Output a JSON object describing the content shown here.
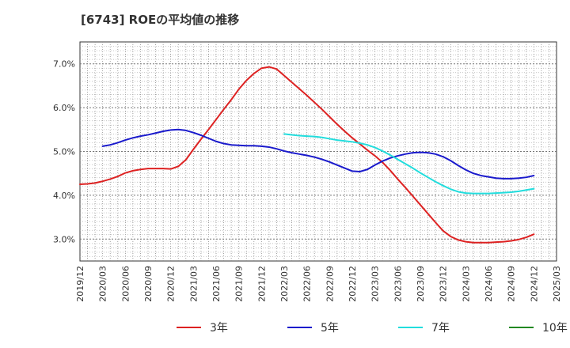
{
  "title": "[6743]  ROEの平均値の推移",
  "chart_data": {
    "type": "line",
    "title": "[6743]  ROEの平均値の推移",
    "xlabel": "",
    "ylabel": "",
    "ylim": [
      2.5,
      7.5
    ],
    "y_ticks": [
      3.0,
      4.0,
      5.0,
      6.0,
      7.0
    ],
    "y_tick_labels": [
      "3.0%",
      "4.0%",
      "5.0%",
      "6.0%",
      "7.0%"
    ],
    "x_ticks": [
      "2019/12",
      "2020/03",
      "2020/06",
      "2020/09",
      "2020/12",
      "2021/03",
      "2021/06",
      "2021/09",
      "2021/12",
      "2022/03",
      "2022/06",
      "2022/09",
      "2022/12",
      "2023/03",
      "2023/06",
      "2023/09",
      "2023/12",
      "2024/03",
      "2024/06",
      "2024/09",
      "2024/12",
      "2025/03"
    ],
    "grid": true,
    "legend_position": "bottom",
    "series": [
      {
        "name": "3年",
        "color": "#dd2222",
        "points": [
          [
            "2019/12",
            4.25
          ],
          [
            "2020/01",
            4.26
          ],
          [
            "2020/02",
            4.28
          ],
          [
            "2020/03",
            4.32
          ],
          [
            "2020/04",
            4.37
          ],
          [
            "2020/05",
            4.43
          ],
          [
            "2020/06",
            4.51
          ],
          [
            "2020/07",
            4.56
          ],
          [
            "2020/08",
            4.59
          ],
          [
            "2020/09",
            4.61
          ],
          [
            "2020/10",
            4.61
          ],
          [
            "2020/11",
            4.61
          ],
          [
            "2020/12",
            4.6
          ],
          [
            "2021/01",
            4.66
          ],
          [
            "2021/02",
            4.81
          ],
          [
            "2021/03",
            5.05
          ],
          [
            "2021/04",
            5.28
          ],
          [
            "2021/05",
            5.5
          ],
          [
            "2021/06",
            5.73
          ],
          [
            "2021/07",
            5.96
          ],
          [
            "2021/08",
            6.18
          ],
          [
            "2021/09",
            6.42
          ],
          [
            "2021/10",
            6.62
          ],
          [
            "2021/11",
            6.78
          ],
          [
            "2021/12",
            6.9
          ],
          [
            "2022/01",
            6.93
          ],
          [
            "2022/02",
            6.88
          ],
          [
            "2022/03",
            6.73
          ],
          [
            "2022/04",
            6.58
          ],
          [
            "2022/05",
            6.43
          ],
          [
            "2022/06",
            6.28
          ],
          [
            "2022/07",
            6.12
          ],
          [
            "2022/08",
            5.96
          ],
          [
            "2022/09",
            5.79
          ],
          [
            "2022/10",
            5.62
          ],
          [
            "2022/11",
            5.46
          ],
          [
            "2022/12",
            5.31
          ],
          [
            "2023/01",
            5.17
          ],
          [
            "2023/02",
            5.03
          ],
          [
            "2023/03",
            4.9
          ],
          [
            "2023/04",
            4.75
          ],
          [
            "2023/05",
            4.57
          ],
          [
            "2023/06",
            4.37
          ],
          [
            "2023/07",
            4.18
          ],
          [
            "2023/08",
            3.98
          ],
          [
            "2023/09",
            3.78
          ],
          [
            "2023/10",
            3.58
          ],
          [
            "2023/11",
            3.38
          ],
          [
            "2023/12",
            3.19
          ],
          [
            "2024/01",
            3.06
          ],
          [
            "2024/02",
            2.98
          ],
          [
            "2024/03",
            2.94
          ],
          [
            "2024/04",
            2.92
          ],
          [
            "2024/05",
            2.92
          ],
          [
            "2024/06",
            2.92
          ],
          [
            "2024/07",
            2.93
          ],
          [
            "2024/08",
            2.94
          ],
          [
            "2024/09",
            2.96
          ],
          [
            "2024/10",
            2.99
          ],
          [
            "2024/11",
            3.04
          ],
          [
            "2024/12",
            3.11
          ]
        ]
      },
      {
        "name": "5年",
        "color": "#1a1acc",
        "points": [
          [
            "2020/03",
            5.12
          ],
          [
            "2020/04",
            5.15
          ],
          [
            "2020/05",
            5.2
          ],
          [
            "2020/06",
            5.26
          ],
          [
            "2020/07",
            5.31
          ],
          [
            "2020/08",
            5.35
          ],
          [
            "2020/09",
            5.38
          ],
          [
            "2020/10",
            5.42
          ],
          [
            "2020/11",
            5.46
          ],
          [
            "2020/12",
            5.49
          ],
          [
            "2021/01",
            5.5
          ],
          [
            "2021/02",
            5.48
          ],
          [
            "2021/03",
            5.43
          ],
          [
            "2021/04",
            5.37
          ],
          [
            "2021/05",
            5.3
          ],
          [
            "2021/06",
            5.23
          ],
          [
            "2021/07",
            5.18
          ],
          [
            "2021/08",
            5.15
          ],
          [
            "2021/09",
            5.14
          ],
          [
            "2021/10",
            5.13
          ],
          [
            "2021/11",
            5.13
          ],
          [
            "2021/12",
            5.12
          ],
          [
            "2022/01",
            5.1
          ],
          [
            "2022/02",
            5.06
          ],
          [
            "2022/03",
            5.01
          ],
          [
            "2022/04",
            4.97
          ],
          [
            "2022/05",
            4.94
          ],
          [
            "2022/06",
            4.91
          ],
          [
            "2022/07",
            4.87
          ],
          [
            "2022/08",
            4.82
          ],
          [
            "2022/09",
            4.76
          ],
          [
            "2022/10",
            4.69
          ],
          [
            "2022/11",
            4.62
          ],
          [
            "2022/12",
            4.55
          ],
          [
            "2023/01",
            4.54
          ],
          [
            "2023/02",
            4.59
          ],
          [
            "2023/03",
            4.69
          ],
          [
            "2023/04",
            4.78
          ],
          [
            "2023/05",
            4.85
          ],
          [
            "2023/06",
            4.9
          ],
          [
            "2023/07",
            4.94
          ],
          [
            "2023/08",
            4.97
          ],
          [
            "2023/09",
            4.98
          ],
          [
            "2023/10",
            4.97
          ],
          [
            "2023/11",
            4.94
          ],
          [
            "2023/12",
            4.88
          ],
          [
            "2024/01",
            4.79
          ],
          [
            "2024/02",
            4.68
          ],
          [
            "2024/03",
            4.58
          ],
          [
            "2024/04",
            4.5
          ],
          [
            "2024/05",
            4.45
          ],
          [
            "2024/06",
            4.42
          ],
          [
            "2024/07",
            4.39
          ],
          [
            "2024/08",
            4.38
          ],
          [
            "2024/09",
            4.38
          ],
          [
            "2024/10",
            4.39
          ],
          [
            "2024/11",
            4.41
          ],
          [
            "2024/12",
            4.45
          ]
        ]
      },
      {
        "name": "7年",
        "color": "#22dddd",
        "points": [
          [
            "2022/03",
            5.4
          ],
          [
            "2022/04",
            5.38
          ],
          [
            "2022/05",
            5.36
          ],
          [
            "2022/06",
            5.35
          ],
          [
            "2022/07",
            5.34
          ],
          [
            "2022/08",
            5.32
          ],
          [
            "2022/09",
            5.29
          ],
          [
            "2022/10",
            5.26
          ],
          [
            "2022/11",
            5.24
          ],
          [
            "2022/12",
            5.22
          ],
          [
            "2023/01",
            5.19
          ],
          [
            "2023/02",
            5.15
          ],
          [
            "2023/03",
            5.09
          ],
          [
            "2023/04",
            5.01
          ],
          [
            "2023/05",
            4.92
          ],
          [
            "2023/06",
            4.82
          ],
          [
            "2023/07",
            4.72
          ],
          [
            "2023/08",
            4.62
          ],
          [
            "2023/09",
            4.51
          ],
          [
            "2023/10",
            4.41
          ],
          [
            "2023/11",
            4.31
          ],
          [
            "2023/12",
            4.22
          ],
          [
            "2024/01",
            4.14
          ],
          [
            "2024/02",
            4.08
          ],
          [
            "2024/03",
            4.05
          ],
          [
            "2024/04",
            4.04
          ],
          [
            "2024/05",
            4.04
          ],
          [
            "2024/06",
            4.04
          ],
          [
            "2024/07",
            4.05
          ],
          [
            "2024/08",
            4.06
          ],
          [
            "2024/09",
            4.07
          ],
          [
            "2024/10",
            4.09
          ],
          [
            "2024/11",
            4.12
          ],
          [
            "2024/12",
            4.15
          ]
        ]
      },
      {
        "name": "10年",
        "color": "#228822",
        "points": []
      }
    ]
  }
}
